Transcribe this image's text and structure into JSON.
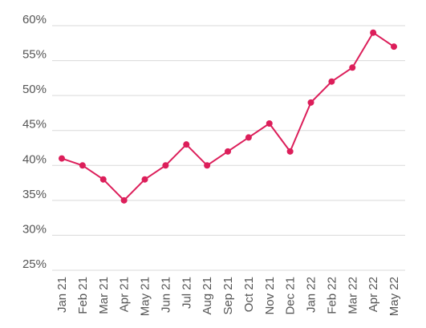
{
  "chart_data": {
    "type": "line",
    "title": "",
    "xlabel": "",
    "ylabel": "",
    "categories": [
      "Jan 21",
      "Feb 21",
      "Mar 21",
      "Apr 21",
      "May 21",
      "Jun 21",
      "Jul 21",
      "Aug 21",
      "Sep 21",
      "Oct 21",
      "Nov 21",
      "Dec 21",
      "Jan 22",
      "Feb 22",
      "Mar 22",
      "Apr 22",
      "May 22"
    ],
    "series": [
      {
        "values": [
          41,
          40,
          38,
          35,
          38,
          40,
          43,
          40,
          42,
          44,
          46,
          42,
          49,
          52,
          54,
          59,
          57
        ],
        "color": "#dc1e5a"
      }
    ],
    "ylim": [
      25,
      60
    ],
    "yticks": [
      25,
      30,
      35,
      40,
      45,
      50,
      55,
      60
    ],
    "ytick_labels": [
      "25%",
      "30%",
      "35%",
      "40%",
      "45%",
      "50%",
      "55%",
      "60%"
    ],
    "grid": true,
    "legend": "none"
  }
}
